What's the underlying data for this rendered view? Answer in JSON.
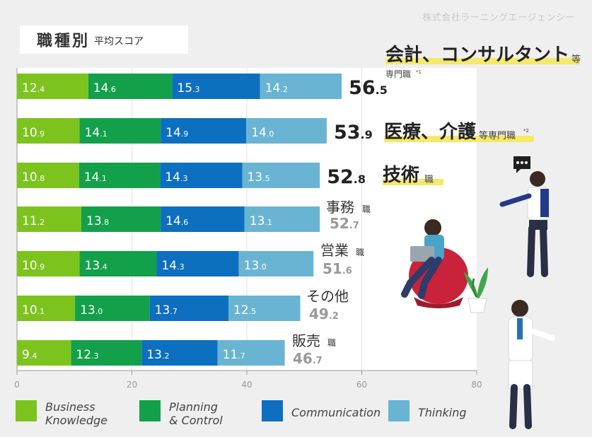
{
  "company": "株式会社ラーニングエージェンシー",
  "title": {
    "main": "職種別",
    "sub": "平均スコア"
  },
  "colors": {
    "business": "#7dc31e",
    "planning": "#13a04a",
    "communication": "#0d6fbf",
    "thinking": "#69b4d3",
    "highlight": "#f5e86a"
  },
  "legend": [
    {
      "label": "Business\nKnowledge",
      "color": "#7dc31e"
    },
    {
      "label": "Planning\n& Control",
      "color": "#13a04a"
    },
    {
      "label": "Communication",
      "color": "#0d6fbf"
    },
    {
      "label": "Thinking",
      "color": "#69b4d3"
    }
  ],
  "chart_data": {
    "type": "bar",
    "stacked": true,
    "orientation": "horizontal",
    "title": "職種別 平均スコア",
    "xlim": [
      0,
      80
    ],
    "xticks": [
      "0",
      "20",
      "40",
      "60",
      "80"
    ],
    "series_names": [
      "Business Knowledge",
      "Planning & Control",
      "Communication",
      "Thinking"
    ],
    "categories": [
      {
        "name": "会計、コンサルタント",
        "suffix": "等",
        "note": "専門職",
        "noteMark": "*1",
        "total": "56.5",
        "highlight": true
      },
      {
        "name": "医療、介護",
        "suffix": "等専門職",
        "noteMark": "*2",
        "total": "53.9",
        "highlight": true
      },
      {
        "name": "技術",
        "suffix": "職",
        "total": "52.8",
        "highlight": true
      },
      {
        "name": "事務",
        "suffix": "職",
        "total": "52.7",
        "highlight": false
      },
      {
        "name": "営業",
        "suffix": "職",
        "total": "51.6",
        "highlight": false
      },
      {
        "name": "その他",
        "suffix": "",
        "total": "49.2",
        "highlight": false
      },
      {
        "name": "販売",
        "suffix": "職",
        "total": "46.7",
        "highlight": false
      }
    ],
    "series": [
      {
        "name": "Business Knowledge",
        "values": [
          12.4,
          10.9,
          10.8,
          11.2,
          10.9,
          10.1,
          9.4
        ]
      },
      {
        "name": "Planning & Control",
        "values": [
          14.6,
          14.1,
          14.1,
          13.8,
          13.4,
          13.0,
          12.3
        ]
      },
      {
        "name": "Communication",
        "values": [
          15.3,
          14.9,
          14.3,
          14.6,
          14.3,
          13.7,
          13.2
        ]
      },
      {
        "name": "Thinking",
        "values": [
          14.2,
          14.0,
          13.5,
          13.1,
          13.0,
          12.5,
          11.7
        ]
      }
    ]
  }
}
